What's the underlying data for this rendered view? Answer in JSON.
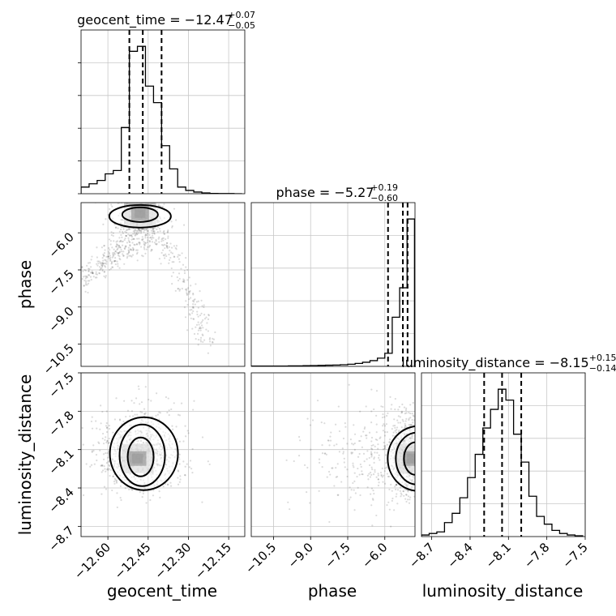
{
  "chart_data": {
    "type": "corner",
    "parameters": [
      "geocent_time",
      "phase",
      "luminosity_distance"
    ],
    "ranges": {
      "geocent_time": [
        -12.7,
        -12.09
      ],
      "phase": [
        -11.4,
        -4.78
      ],
      "luminosity_distance": [
        -8.78,
        -7.5
      ]
    },
    "ticks": {
      "geocent_time": [
        "−12.60",
        "−12.45",
        "−12.30",
        "−12.15"
      ],
      "phase": [
        "−10.5",
        "−9.0",
        "−7.5",
        "−6.0"
      ],
      "luminosity_distance": [
        "−8.7",
        "−8.4",
        "−8.1",
        "−7.8",
        "−7.5"
      ]
    },
    "tick_values": {
      "geocent_time": [
        -12.6,
        -12.45,
        -12.3,
        -12.15
      ],
      "phase": [
        -10.5,
        -9.0,
        -7.5,
        -6.0
      ],
      "luminosity_distance": [
        -8.7,
        -8.4,
        -8.1,
        -7.8,
        -7.5
      ]
    },
    "titles": {
      "geocent_time": {
        "text": "geocent_time = −12.47",
        "plus": "+0.07",
        "minus": "−0.05",
        "median": -12.47,
        "lo": -12.52,
        "hi": -12.4
      },
      "phase": {
        "text": "phase = −5.27",
        "plus": "+0.19",
        "minus": "−0.60",
        "median": -5.27,
        "lo": -5.87,
        "hi": -5.08
      },
      "luminosity_distance": {
        "text": "luminosity_distance = −8.15",
        "plus": "+0.15",
        "minus": "−0.14",
        "median": -8.15,
        "lo": -8.29,
        "hi": -8.0
      }
    },
    "histograms": {
      "geocent_time": {
        "bins": [
          -12.7,
          -12.67,
          -12.64,
          -12.61,
          -12.58,
          -12.55,
          -12.52,
          -12.49,
          -12.46,
          -12.43,
          -12.4,
          -12.37,
          -12.34,
          -12.31,
          -12.28,
          -12.25,
          -12.22,
          -12.19,
          -12.16,
          -12.13,
          -12.1
        ],
        "counts": [
          4,
          6,
          8,
          12,
          14,
          40,
          86,
          89,
          65,
          55,
          29,
          15,
          4,
          2,
          1,
          0.5,
          0.2,
          0.1,
          0.1,
          0
        ]
      },
      "phase": {
        "bins": [
          -11.4,
          -11.1,
          -10.8,
          -10.5,
          -10.2,
          -9.9,
          -9.6,
          -9.3,
          -9.0,
          -8.7,
          -8.4,
          -8.1,
          -7.8,
          -7.5,
          -7.2,
          -6.9,
          -6.6,
          -6.3,
          -6.0,
          -5.7,
          -5.4,
          -5.1,
          -4.8
        ],
        "counts": [
          0.2,
          0.2,
          0.2,
          0.2,
          0.2,
          0.3,
          0.3,
          0.4,
          0.5,
          0.6,
          0.7,
          0.8,
          1,
          1.3,
          1.8,
          2.5,
          3.5,
          5,
          8,
          30,
          48,
          90
        ]
      },
      "luminosity_distance": {
        "bins": [
          -8.78,
          -8.72,
          -8.66,
          -8.6,
          -8.54,
          -8.48,
          -8.42,
          -8.36,
          -8.3,
          -8.24,
          -8.18,
          -8.12,
          -8.06,
          -8.0,
          -7.94,
          -7.88,
          -7.82,
          -7.76,
          -7.7,
          -7.64,
          -7.58,
          -7.52
        ],
        "counts": [
          1,
          2,
          3,
          9,
          15,
          25,
          38,
          53,
          70,
          82,
          95,
          88,
          66,
          48,
          26,
          13,
          8,
          4,
          2,
          1,
          0.5
        ]
      }
    },
    "density_peaks": {
      "phase_vs_geocent_time": [
        -12.48,
        -5.2
      ],
      "luminosity_distance_vs_geocent_time": [
        -12.49,
        -8.17
      ],
      "luminosity_distance_vs_phase": [
        -4.9,
        -8.17
      ]
    },
    "grid": true
  }
}
